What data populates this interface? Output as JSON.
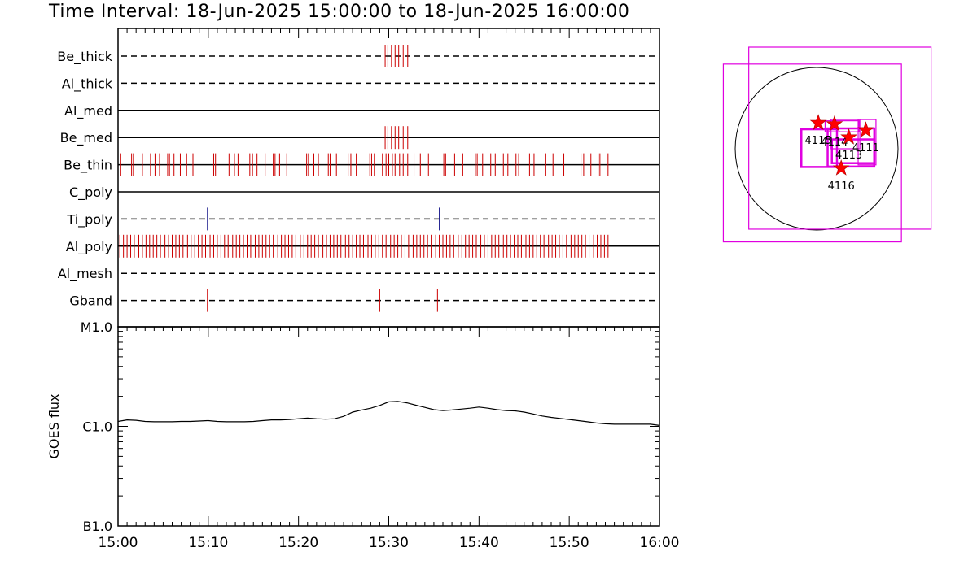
{
  "title": "Time Interval: 18-Jun-2025 15:00:00 to 18-Jun-2025 16:00:00",
  "colors": {
    "event_red": "#cc0000",
    "event_blue": "#1a1a8c",
    "fov_magenta": "#e000e0",
    "star_red": "#ff0000"
  },
  "chart_data": [
    {
      "type": "event-timeline",
      "x_range": [
        "15:00",
        "16:00"
      ],
      "rows": [
        {
          "label": "Be_thick",
          "line": "dashed",
          "marks": [
            {
              "color": "#cc0000",
              "times": [
                29.6,
                29.9,
                30.3,
                30.7,
                31.1,
                31.6,
                32.1
              ]
            }
          ]
        },
        {
          "label": "Al_thick",
          "line": "dashed",
          "marks": []
        },
        {
          "label": "Al_med",
          "line": "solid",
          "marks": []
        },
        {
          "label": "Be_med",
          "line": "solid",
          "marks": [
            {
              "color": "#cc0000",
              "times": [
                29.6,
                29.9,
                30.3,
                30.7,
                31.1,
                31.6,
                32.1
              ]
            }
          ]
        },
        {
          "label": "Be_thin",
          "line": "solid",
          "marks": [
            {
              "color": "#cc0000",
              "times": [
                0.3,
                1.5,
                1.7,
                2.7,
                3.6,
                4.1,
                4.6,
                5.5,
                5.7,
                6.2,
                6.9,
                7.6,
                8.3,
                10.6,
                10.8,
                12.3,
                12.9,
                13.3,
                14.6,
                14.9,
                15.4,
                16.3,
                17.2,
                17.4,
                17.9,
                18.7,
                20.9,
                21.1,
                21.7,
                22.2,
                23.3,
                23.5,
                24.2,
                25.5,
                25.8,
                26.4,
                27.9,
                28.1,
                28.4,
                29.3,
                29.7,
                30.0,
                30.4,
                30.7,
                31.2,
                31.6,
                32.1,
                32.8,
                33.5,
                34.4,
                36.1,
                36.3,
                37.3,
                38.2,
                39.6,
                39.8,
                40.4,
                41.3,
                41.8,
                42.7,
                43.2,
                44.1,
                44.4,
                45.6,
                46.1,
                47.4,
                48.2,
                49.4,
                51.3,
                51.6,
                52.4,
                53.2,
                53.4,
                54.3
              ]
            }
          ]
        },
        {
          "label": "C_poly",
          "line": "solid",
          "marks": []
        },
        {
          "label": "Ti_poly",
          "line": "dashed",
          "marks": [
            {
              "color": "#1a1a8c",
              "times": [
                9.9,
                35.6
              ]
            }
          ]
        },
        {
          "label": "Al_poly",
          "line": "solid",
          "marks": [
            {
              "color": "#cc0000",
              "times": [
                0.2,
                0.6,
                1.0,
                1.4,
                1.8,
                2.3,
                2.7,
                3.1,
                3.5,
                3.9,
                4.3,
                4.7,
                5.2,
                5.6,
                6.0,
                6.4,
                6.8,
                7.2,
                7.7,
                8.1,
                8.5,
                8.9,
                9.3,
                9.7,
                10.2,
                10.6,
                11.0,
                11.4,
                11.8,
                12.2,
                12.7,
                13.1,
                13.5,
                13.9,
                14.3,
                14.7,
                15.2,
                15.6,
                16.0,
                16.4,
                16.8,
                17.2,
                17.7,
                18.1,
                18.5,
                18.9,
                19.3,
                19.7,
                20.2,
                20.6,
                21.0,
                21.4,
                21.8,
                22.2,
                22.7,
                23.1,
                23.5,
                23.9,
                24.3,
                24.7,
                25.2,
                25.6,
                26.0,
                26.4,
                26.8,
                27.2,
                27.7,
                28.1,
                28.5,
                28.9,
                29.3,
                29.7,
                30.2,
                30.6,
                31.0,
                31.4,
                31.8,
                32.2,
                32.7,
                33.1,
                33.5,
                33.9,
                34.3,
                34.7,
                35.2,
                35.6,
                36.0,
                36.4,
                36.8,
                37.2,
                37.7,
                38.1,
                38.5,
                38.9,
                39.3,
                39.7,
                40.2,
                40.6,
                41.0,
                41.4,
                41.8,
                42.2,
                42.7,
                43.1,
                43.5,
                43.9,
                44.3,
                44.7,
                45.2,
                45.6,
                46.0,
                46.4,
                46.8,
                47.2,
                47.7,
                48.1,
                48.5,
                48.9,
                49.3,
                49.7,
                50.2,
                50.6,
                51.0,
                51.4,
                51.8,
                52.2,
                52.7,
                53.1,
                53.5,
                53.9,
                54.3
              ]
            }
          ]
        },
        {
          "label": "Al_mesh",
          "line": "dashed",
          "marks": []
        },
        {
          "label": "Gband",
          "line": "dashed",
          "marks": [
            {
              "color": "#cc0000",
              "times": [
                9.9,
                29.0,
                35.4
              ]
            }
          ]
        }
      ]
    },
    {
      "type": "line",
      "ylabel": "GOES flux",
      "x_ticks": [
        "15:00",
        "15:10",
        "15:20",
        "15:30",
        "15:40",
        "15:50",
        "16:00"
      ],
      "y_scale": "log",
      "y_ticks": [
        "M1.0",
        "C1.0",
        "B1.0"
      ],
      "ylim": [
        1e-07,
        1e-05
      ],
      "series": [
        {
          "x": [
            0,
            1,
            2,
            3,
            4,
            5,
            6,
            7,
            8,
            9,
            10,
            11,
            12,
            13,
            14,
            15,
            16,
            17,
            18,
            19,
            20,
            21,
            22,
            23,
            24,
            25,
            26,
            27,
            28,
            29,
            30,
            31,
            32,
            33,
            34,
            35,
            36,
            37,
            38,
            39,
            40,
            41,
            42,
            43,
            44,
            45,
            46,
            47,
            48,
            49,
            50,
            51,
            52,
            53,
            54,
            55,
            56,
            57,
            58,
            59,
            60
          ],
          "y": [
            1.12e-06,
            1.16e-06,
            1.15e-06,
            1.12e-06,
            1.11e-06,
            1.11e-06,
            1.11e-06,
            1.12e-06,
            1.12e-06,
            1.13e-06,
            1.14e-06,
            1.12e-06,
            1.11e-06,
            1.11e-06,
            1.11e-06,
            1.12e-06,
            1.14e-06,
            1.16e-06,
            1.16e-06,
            1.17e-06,
            1.19e-06,
            1.21e-06,
            1.19e-06,
            1.18e-06,
            1.19e-06,
            1.26e-06,
            1.39e-06,
            1.46e-06,
            1.52e-06,
            1.62e-06,
            1.76e-06,
            1.78e-06,
            1.72e-06,
            1.63e-06,
            1.55e-06,
            1.47e-06,
            1.44e-06,
            1.46e-06,
            1.49e-06,
            1.52e-06,
            1.56e-06,
            1.52e-06,
            1.47e-06,
            1.44e-06,
            1.43e-06,
            1.39e-06,
            1.33e-06,
            1.27e-06,
            1.23e-06,
            1.2e-06,
            1.17e-06,
            1.14e-06,
            1.11e-06,
            1.08e-06,
            1.06e-06,
            1.05e-06,
            1.05e-06,
            1.05e-06,
            1.05e-06,
            1.05e-06,
            1.02e-06
          ]
        }
      ]
    }
  ],
  "solar_map": {
    "type": "scatter",
    "disk_radius_arcsec": 960,
    "fov_boxes": [
      {
        "x0": -1100,
        "x1": 1000,
        "y0": -1100,
        "y1": 1000
      },
      {
        "x0": -800,
        "x1": 1350,
        "y0": -950,
        "y1": 1200
      },
      {
        "x0": -180,
        "x1": 240,
        "y0": -215,
        "y1": 230
      },
      {
        "x0": 130,
        "x1": 680,
        "y0": -210,
        "y1": 240
      },
      {
        "x0": 180,
        "x1": 680,
        "y0": -170,
        "y1": 110
      },
      {
        "x0": 490,
        "x1": 700,
        "y0": -190,
        "y1": 345
      },
      {
        "x0": 170,
        "x1": 510,
        "y0": 0,
        "y1": 345
      },
      {
        "x0": 100,
        "x1": 500,
        "y0": 200,
        "y1": 330
      }
    ],
    "stars": [
      {
        "id": "4115",
        "x": 20,
        "y": 305
      },
      {
        "id": "4114",
        "x": 210,
        "y": 290
      },
      {
        "id": "4113",
        "x": 380,
        "y": 135
      },
      {
        "id": "4111",
        "x": 580,
        "y": 220
      },
      {
        "id": "4116",
        "x": 290,
        "y": -230
      }
    ]
  }
}
